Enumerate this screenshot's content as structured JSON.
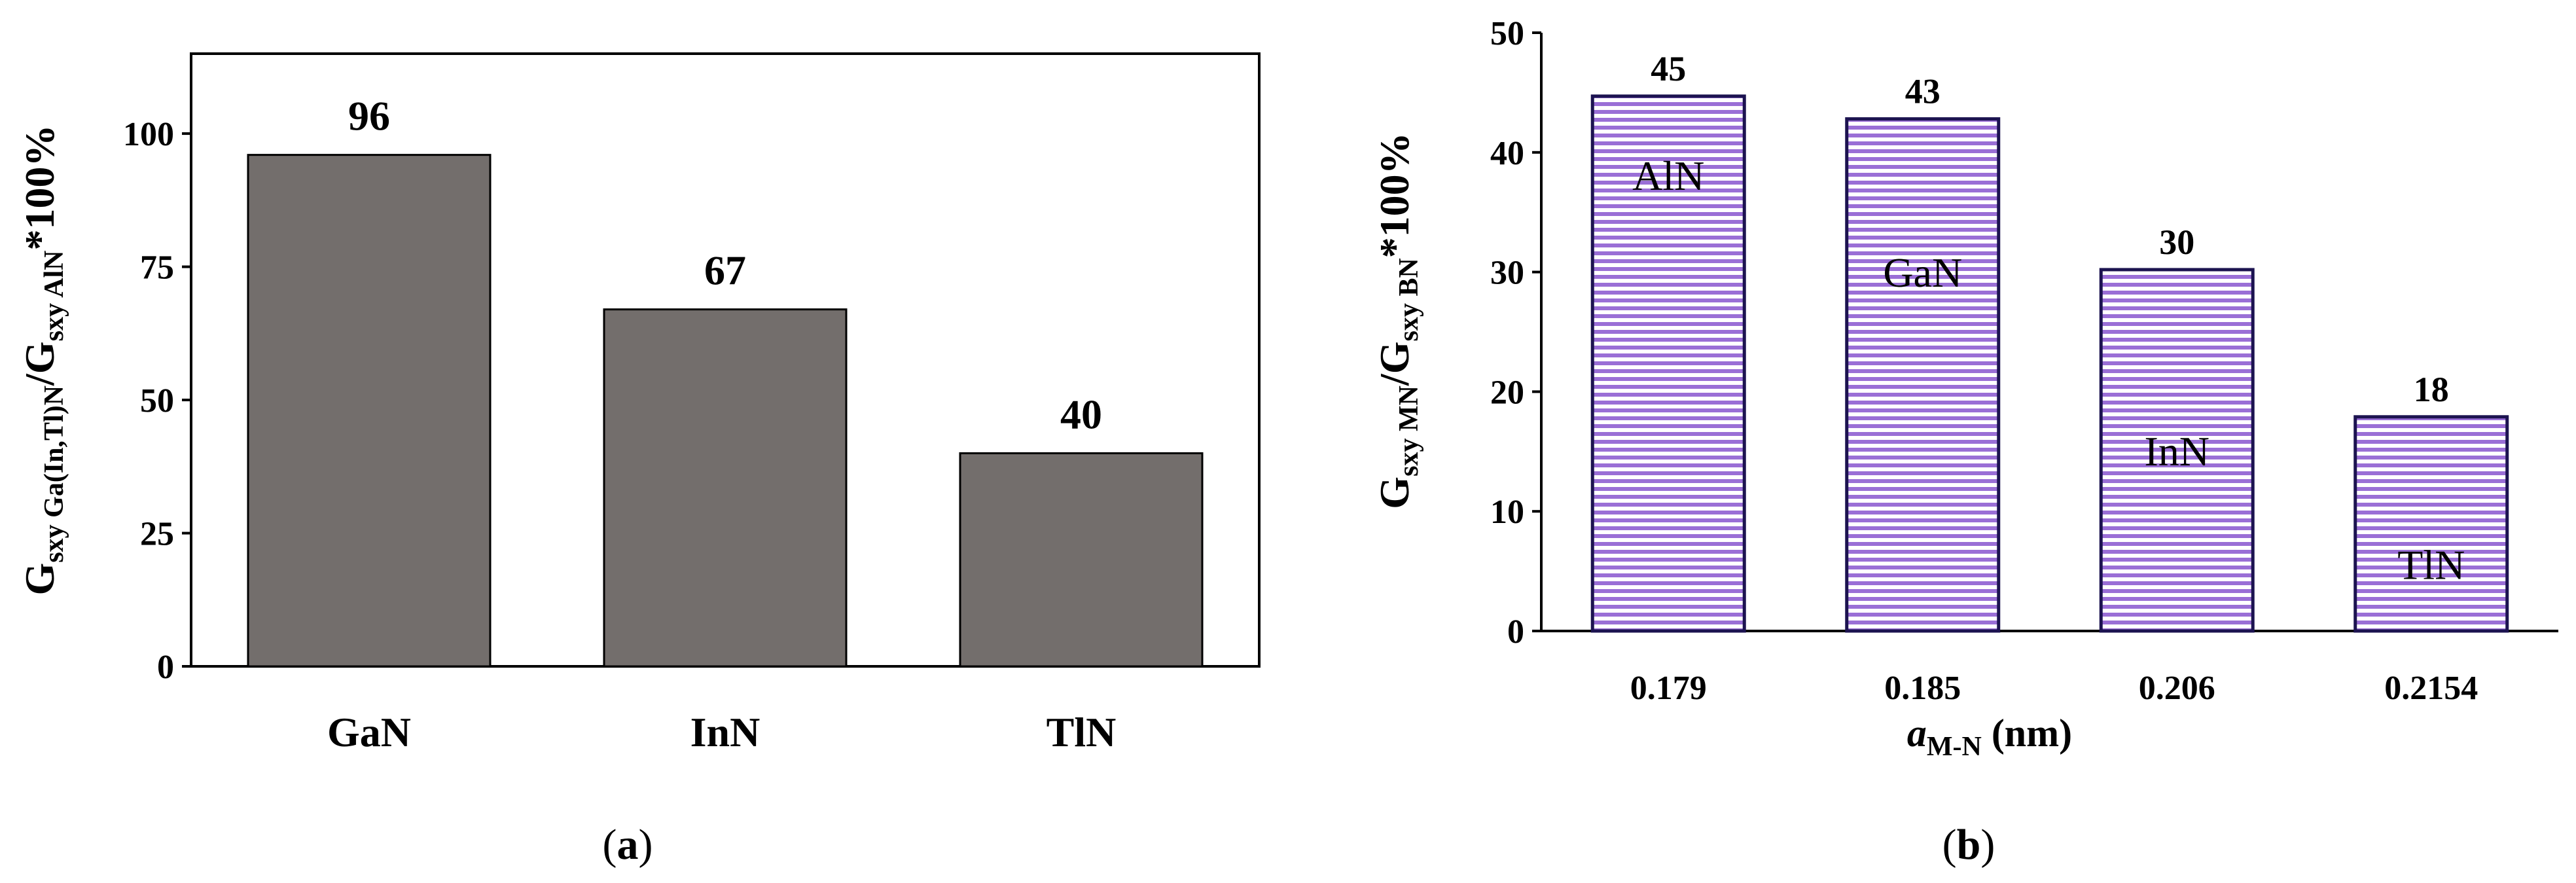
{
  "charts": [
    {
      "id": "a",
      "type": "bar",
      "categories": [
        "GaN",
        "InN",
        "TlN"
      ],
      "values": [
        96,
        67,
        40
      ],
      "data_labels": [
        "96",
        "67",
        "40"
      ],
      "ylim": [
        0,
        115
      ],
      "yticks": [
        0,
        25,
        50,
        75,
        100
      ],
      "ylabel": {
        "main": "G",
        "sub1": "sxy Ga(In,Tl)N",
        "mid": "/G",
        "sub2": "sxy AlN",
        "tail": "*100%"
      },
      "xlabel": "",
      "caption": {
        "open": "(",
        "letter": "a",
        "close": ")"
      },
      "bar_color": "#736e6c"
    },
    {
      "id": "b",
      "type": "bar",
      "categories": [
        "0.179",
        "0.185",
        "0.206",
        "0.2154"
      ],
      "values": [
        44.7,
        42.8,
        30.2,
        17.9
      ],
      "data_labels": [
        "45",
        "43",
        "30",
        "18"
      ],
      "bar_labels": [
        "AlN",
        "GaN",
        "InN",
        "TlN"
      ],
      "ylim": [
        0,
        50
      ],
      "yticks": [
        0,
        10,
        20,
        30,
        40,
        50
      ],
      "ylabel": {
        "main": "G",
        "sub1": "sxy MN",
        "mid": "/G",
        "sub2": "sxy BN",
        "tail": "*100%"
      },
      "xlabel": {
        "main": "a",
        "sub": "M-N",
        "tail": " (nm)"
      },
      "caption": {
        "open": "(",
        "letter": "b",
        "close": ")"
      },
      "bar_color": "#9a6fd6",
      "bar_edge": "#1c1350"
    }
  ],
  "chart_data": [
    {
      "type": "bar",
      "title": "",
      "categories": [
        "GaN",
        "InN",
        "TlN"
      ],
      "values": [
        96,
        67,
        40
      ],
      "ylabel": "Gsxy Ga(In,Tl)N/Gsxy AlN*100%",
      "xlabel": "",
      "ylim": [
        0,
        115
      ],
      "yticks": [
        0,
        25,
        50,
        75,
        100
      ],
      "grid": false,
      "legend": "none",
      "caption": "(a)"
    },
    {
      "type": "bar",
      "title": "",
      "categories": [
        "0.179",
        "0.185",
        "0.206",
        "0.2154"
      ],
      "values": [
        44.7,
        42.8,
        30.2,
        17.9
      ],
      "data_labels": [
        "45",
        "43",
        "30",
        "18"
      ],
      "annotations": [
        "AlN",
        "GaN",
        "InN",
        "TlN"
      ],
      "ylabel": "Gsxy MN/Gsxy BN*100%",
      "xlabel": "aM-N (nm)",
      "ylim": [
        0,
        50
      ],
      "yticks": [
        0,
        10,
        20,
        30,
        40,
        50
      ],
      "grid": false,
      "legend": "none",
      "caption": "(b)"
    }
  ]
}
